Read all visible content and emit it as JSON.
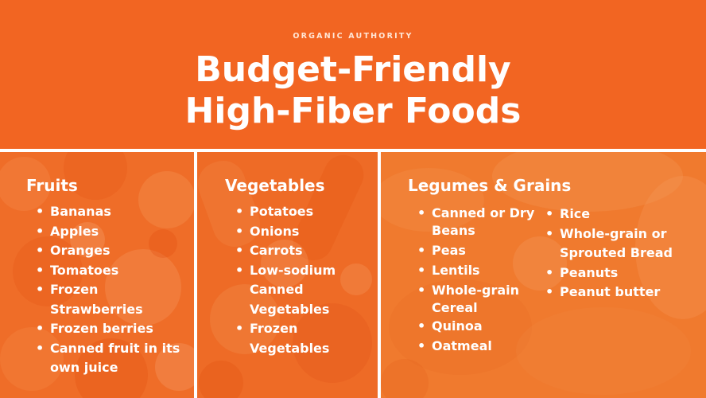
{
  "header": {
    "brand": "ORGANIC AUTHORITY",
    "title_line1": "Budget-Friendly",
    "title_line2": "High-Fiber Foods"
  },
  "colors": {
    "background": "#f26522",
    "text": "#ffffff"
  },
  "fruits": {
    "title": "Fruits",
    "items": [
      "Bananas",
      "Apples",
      "Oranges",
      "Tomatoes",
      "Frozen Strawberries",
      "Frozen berries",
      "Canned fruit in its own juice"
    ]
  },
  "vegetables": {
    "title": "Vegetables",
    "items": [
      "Potatoes",
      "Onions",
      "Carrots",
      "Low-sodium Canned Vegetables",
      "Frozen Vegetables"
    ]
  },
  "legumes": {
    "title": "Legumes & Grains",
    "items_left": [
      "Canned or Dry Beans",
      "Peas",
      "Lentils",
      "Whole-grain Cereal",
      "Quinoa",
      "Oatmeal"
    ],
    "items_right": [
      "Rice",
      "Whole-grain or Sprouted Bread",
      "Peanuts",
      "Peanut butter"
    ]
  }
}
